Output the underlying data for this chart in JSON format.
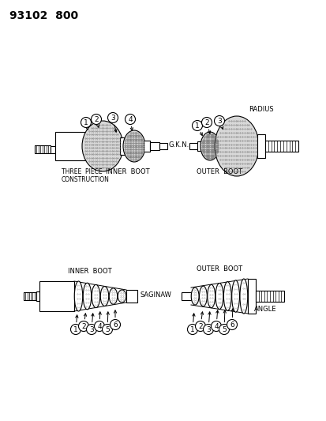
{
  "title": "93102  800",
  "background_color": "#ffffff",
  "line_color": "#000000",
  "text_color": "#000000",
  "labels": {
    "three_piece": "THREE  PIECE\nCONSTRUCTION",
    "gkn": "G.K.N.",
    "inner_boot_top": "INNER  BOOT",
    "outer_boot_top": "OUTER  BOOT",
    "radius": "RADIUS",
    "inner_boot_bot": "INNER  BOOT",
    "saginaw": "SAGINAW",
    "outer_boot_bot": "OUTER  BOOT",
    "angle": "ANGLE"
  }
}
